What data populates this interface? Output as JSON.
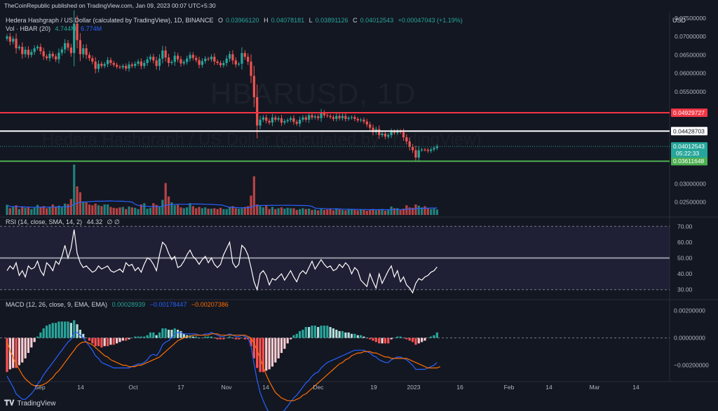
{
  "publisher_line": "TheCoinRepublic published on TradingView.com, Jan 09, 2023 00:07 UTC+5:30",
  "symbol_title": "Hedera Hashgraph / US Dollar (calculated by TradingView), 1D, BINANCE",
  "ohlc": {
    "o_label": "O",
    "o": "0.03966120",
    "h_label": "H",
    "h": "0.04078181",
    "l_label": "L",
    "l": "0.03891126",
    "c_label": "C",
    "c": "0.04012543",
    "change": "+0.00047043 (+1.19%)"
  },
  "volume_indicator": {
    "label": "Vol · HBAR (20)",
    "value1": "4.744M",
    "value2": "6.774M"
  },
  "rsi_indicator": {
    "label": "RSI (14, close, SMA, 14, 2)",
    "value": "44.32",
    "extra": "∅ ∅"
  },
  "macd_indicator": {
    "label": "MACD (12, 26, close, 9, EMA, EMA)",
    "hist": "0.00028939",
    "macd": "−0.00178447",
    "signal": "−0.00207386"
  },
  "currency": "USD",
  "watermark_symbol": "HBARUSD, 1D",
  "watermark_name": "Hedera Hashgraph / US Dollar (calculated by TradingView)",
  "brand": "TradingView",
  "colors": {
    "bg": "#131722",
    "up": "#26a69a",
    "down": "#ef5350",
    "red_line": "#f23645",
    "white_line": "#ffffff",
    "green_line": "#4caf50",
    "macd": "#2962ff",
    "signal": "#ff6d00",
    "rsi": "#ffffff"
  },
  "chart_data": {
    "type": "candlestick",
    "x_tick_labels": [
      "Sep",
      "14",
      "Oct",
      "17",
      "Nov",
      "14",
      "Dec",
      "19",
      "2023",
      "16",
      "Feb",
      "14",
      "Mar",
      "14"
    ],
    "price_axis_labels": [
      "0.07500000",
      "0.07000000",
      "0.06500000",
      "0.06000000",
      "0.05500000",
      "0.03000000",
      "0.02500000"
    ],
    "ylim": [
      0.0215,
      0.0765
    ],
    "levels": [
      {
        "name": "resistance",
        "value": 0.04929727,
        "label": "0.04929727",
        "color": "#f23645"
      },
      {
        "name": "resistance-2",
        "value": 0.04428703,
        "label": "0.04428703",
        "color": "#ffffff"
      },
      {
        "name": "support",
        "value": 0.03611648,
        "label": "0.03611648",
        "color": "#4caf50"
      }
    ],
    "last_price": {
      "value": 0.04012543,
      "label": "0.04012543",
      "countdown": "05:22:33"
    },
    "close": [
      0.07,
      0.0686,
      0.0694,
      0.0668,
      0.0672,
      0.0652,
      0.0664,
      0.065,
      0.0658,
      0.0668,
      0.0672,
      0.066,
      0.0646,
      0.0641,
      0.0653,
      0.0646,
      0.0638,
      0.0656,
      0.0665,
      0.0682,
      0.067,
      0.0655,
      0.0735,
      0.069,
      0.0652,
      0.0668,
      0.065,
      0.0641,
      0.0632,
      0.0612,
      0.0626,
      0.062,
      0.0625,
      0.0636,
      0.0628,
      0.0623,
      0.0618,
      0.0616,
      0.062,
      0.0613,
      0.0624,
      0.062,
      0.0626,
      0.0632,
      0.062,
      0.0628,
      0.0638,
      0.0645,
      0.0635,
      0.062,
      0.064,
      0.0662,
      0.0643,
      0.0628,
      0.0631,
      0.0648,
      0.0638,
      0.0627,
      0.0631,
      0.064,
      0.065,
      0.0642,
      0.0636,
      0.0623,
      0.0633,
      0.064,
      0.0638,
      0.0645,
      0.0632,
      0.0628,
      0.0622,
      0.0628,
      0.064,
      0.0652,
      0.0635,
      0.0624,
      0.0626,
      0.0655,
      0.0645,
      0.0632,
      0.0593,
      0.0535,
      0.0458,
      0.0474,
      0.048,
      0.0471,
      0.0466,
      0.048,
      0.0474,
      0.0478,
      0.0466,
      0.047,
      0.0473,
      0.0478,
      0.0468,
      0.0463,
      0.0474,
      0.048,
      0.0474,
      0.0486,
      0.048,
      0.0483,
      0.0478,
      0.0493,
      0.0486,
      0.0484,
      0.0481,
      0.0476,
      0.0484,
      0.0478,
      0.0484,
      0.0476,
      0.0479,
      0.0481,
      0.0476,
      0.0472,
      0.0474,
      0.0469,
      0.0461,
      0.0452,
      0.044,
      0.0448,
      0.0432,
      0.0436,
      0.0428,
      0.0432,
      0.0442,
      0.0438,
      0.0443,
      0.044,
      0.0426,
      0.0415,
      0.04,
      0.0391,
      0.0371,
      0.0391,
      0.0393,
      0.0392,
      0.0389,
      0.0393,
      0.0397,
      0.0401
    ],
    "volume": [
      2.4,
      1.6,
      1.9,
      2.3,
      1.4,
      2.0,
      1.7,
      1.8,
      1.4,
      1.7,
      2.4,
      1.9,
      2.1,
      1.6,
      1.9,
      2.5,
      1.9,
      2.2,
      1.8,
      2.7,
      2.6,
      3.8,
      12.0,
      6.8,
      5.4,
      3.2,
      3.0,
      2.5,
      2.3,
      2.7,
      2.3,
      2.1,
      2.5,
      2.5,
      1.9,
      1.7,
      1.6,
      1.8,
      1.9,
      1.4,
      2.0,
      1.8,
      1.7,
      1.4,
      2.5,
      2.8,
      1.5,
      1.7,
      2.8,
      2.4,
      1.9,
      3.6,
      7.6,
      4.4,
      3.0,
      2.3,
      2.4,
      1.8,
      1.6,
      1.8,
      2.8,
      2.1,
      1.6,
      1.9,
      1.6,
      1.8,
      1.5,
      1.5,
      1.6,
      1.4,
      1.7,
      1.4,
      1.4,
      1.9,
      2.1,
      1.6,
      1.5,
      1.6,
      1.9,
      2.1,
      4.6,
      9.2,
      2.5,
      2.1,
      1.8,
      2.2,
      1.4,
      1.9,
      1.4,
      1.6,
      1.8,
      1.5,
      1.7,
      1.6,
      1.6,
      1.2,
      1.4,
      1.6,
      1.4,
      1.5,
      1.2,
      1.3,
      1.1,
      1.4,
      1.2,
      1.3,
      1.5,
      1.1,
      1.6,
      1.3,
      1.2,
      1.1,
      1.4,
      1.3,
      1.2,
      1.1,
      1.3,
      1.2,
      1.0,
      1.3,
      1.4,
      1.1,
      1.3,
      1.4,
      1.0,
      1.3,
      2.0,
      1.6,
      1.6,
      1.2,
      1.5,
      2.3,
      1.8,
      1.7,
      2.5,
      2.2,
      1.8,
      2.1,
      1.7,
      1.4,
      1.5,
      1.3
    ],
    "rsi_axis_labels": [
      "70.00",
      "60.00",
      "50.00",
      "40.00",
      "30.00"
    ],
    "rsi_band": [
      30,
      70
    ],
    "rsi_midline": 50,
    "rsi": [
      42,
      45,
      43,
      47,
      39,
      42,
      38,
      45,
      43,
      44,
      48,
      42,
      39,
      47,
      45,
      42,
      48,
      46,
      51,
      58,
      50,
      56,
      68,
      53,
      47,
      44,
      45,
      43,
      41,
      42,
      45,
      43,
      44,
      45,
      42,
      41,
      42,
      43,
      41,
      47,
      45,
      46,
      42,
      44,
      41,
      46,
      50,
      49,
      46,
      42,
      52,
      60,
      58,
      53,
      49,
      51,
      44,
      45,
      48,
      52,
      55,
      51,
      49,
      46,
      49,
      51,
      47,
      50,
      46,
      44,
      46,
      52,
      56,
      60,
      47,
      44,
      46,
      58,
      56,
      52,
      44,
      35,
      30,
      40,
      42,
      39,
      33,
      37,
      36,
      38,
      40,
      36,
      39,
      42,
      38,
      35,
      40,
      42,
      40,
      44,
      48,
      43,
      46,
      49,
      46,
      44,
      45,
      42,
      43,
      46,
      44,
      47,
      45,
      40,
      44,
      42,
      36,
      34,
      32,
      40,
      35,
      31,
      40,
      34,
      38,
      42,
      45,
      38,
      42,
      35,
      38,
      33,
      31,
      28,
      34,
      37,
      36,
      38,
      39,
      41,
      42,
      44.32
    ],
    "macd_axis_labels": [
      "0.00200000",
      "0.00000000",
      "−0.00200000"
    ],
    "macd_ylim": [
      -0.0032,
      0.0027
    ],
    "macd_line": [
      -0.0028,
      -0.0032,
      -0.0036,
      -0.0041,
      -0.0043,
      -0.0045,
      -0.0045,
      -0.0043,
      -0.0041,
      -0.0038,
      -0.0034,
      -0.0031,
      -0.0027,
      -0.0024,
      -0.0021,
      -0.0018,
      -0.0015,
      -0.0012,
      -0.0009,
      -0.0006,
      -0.0003,
      -0.0001,
      0.0004,
      0.0004,
      0.0002,
      0.0,
      -0.0003,
      -0.0006,
      -0.0009,
      -0.0013,
      -0.0015,
      -0.0018,
      -0.0019,
      -0.002,
      -0.0021,
      -0.0022,
      -0.0022,
      -0.0022,
      -0.0022,
      -0.0022,
      -0.0022,
      -0.0021,
      -0.002,
      -0.0019,
      -0.0019,
      -0.0018,
      -0.0016,
      -0.0013,
      -0.0012,
      -0.0013,
      -0.001,
      -0.0005,
      -0.0003,
      -0.0002,
      0.0,
      0.0003,
      0.0004,
      0.0004,
      0.0003,
      0.0003,
      0.0003,
      0.0003,
      0.0003,
      0.0002,
      0.0002,
      0.0003,
      0.0003,
      0.0004,
      0.0003,
      0.0002,
      0.0001,
      0.0001,
      0.0002,
      0.0003,
      0.0002,
      0.0001,
      0.0001,
      0.0002,
      0.0001,
      0.0,
      -0.0006,
      -0.0019,
      -0.0031,
      -0.004,
      -0.0046,
      -0.0051,
      -0.0055,
      -0.0057,
      -0.0058,
      -0.0057,
      -0.0055,
      -0.0053,
      -0.005,
      -0.0047,
      -0.0044,
      -0.0042,
      -0.0039,
      -0.0036,
      -0.0033,
      -0.0031,
      -0.0028,
      -0.0026,
      -0.0025,
      -0.0022,
      -0.002,
      -0.0018,
      -0.0017,
      -0.0016,
      -0.0015,
      -0.0014,
      -0.0013,
      -0.0012,
      -0.0011,
      -0.001,
      -0.0009,
      -0.0009,
      -0.0009,
      -0.0009,
      -0.001,
      -0.0011,
      -0.0013,
      -0.0014,
      -0.0016,
      -0.0017,
      -0.0018,
      -0.0018,
      -0.0016,
      -0.0015,
      -0.0014,
      -0.0014,
      -0.0015,
      -0.0016,
      -0.0018,
      -0.002,
      -0.0023,
      -0.0023,
      -0.0023,
      -0.0023,
      -0.0022,
      -0.0021,
      -0.002,
      -0.0018
    ],
    "signal_line": [
      -0.0003,
      -0.0009,
      -0.0014,
      -0.0019,
      -0.0023,
      -0.0027,
      -0.003,
      -0.0032,
      -0.0034,
      -0.0035,
      -0.0035,
      -0.0035,
      -0.0034,
      -0.0033,
      -0.0031,
      -0.0029,
      -0.0026,
      -0.0024,
      -0.0021,
      -0.0018,
      -0.0015,
      -0.0012,
      -0.0009,
      -0.0006,
      -0.0004,
      -0.0003,
      -0.0003,
      -0.0004,
      -0.0005,
      -0.0007,
      -0.0009,
      -0.0011,
      -0.0013,
      -0.0014,
      -0.0016,
      -0.0017,
      -0.0018,
      -0.0019,
      -0.002,
      -0.002,
      -0.0021,
      -0.0021,
      -0.0021,
      -0.002,
      -0.002,
      -0.0019,
      -0.0018,
      -0.0017,
      -0.0016,
      -0.0015,
      -0.0014,
      -0.0012,
      -0.001,
      -0.0008,
      -0.0006,
      -0.0004,
      -0.0002,
      -0.0001,
      0.0,
      0.0001,
      0.0001,
      0.0002,
      0.0002,
      0.0002,
      0.0002,
      0.0002,
      0.0002,
      0.0003,
      0.0003,
      0.0003,
      0.0002,
      0.0002,
      0.0002,
      0.0002,
      0.0002,
      0.0002,
      0.0002,
      0.0002,
      0.0002,
      0.0001,
      0.0,
      -0.0004,
      -0.0009,
      -0.0015,
      -0.0021,
      -0.0027,
      -0.0032,
      -0.0036,
      -0.004,
      -0.0042,
      -0.0044,
      -0.0045,
      -0.0046,
      -0.0046,
      -0.0046,
      -0.0045,
      -0.0044,
      -0.0042,
      -0.0041,
      -0.0039,
      -0.0037,
      -0.0035,
      -0.0033,
      -0.0031,
      -0.0029,
      -0.0027,
      -0.0025,
      -0.0023,
      -0.0021,
      -0.0019,
      -0.0018,
      -0.0016,
      -0.0015,
      -0.0013,
      -0.0012,
      -0.0011,
      -0.0011,
      -0.001,
      -0.001,
      -0.001,
      -0.0011,
      -0.0011,
      -0.0012,
      -0.0013,
      -0.0014,
      -0.0014,
      -0.0015,
      -0.0015,
      -0.0015,
      -0.0015,
      -0.0015,
      -0.0015,
      -0.0016,
      -0.0017,
      -0.0018,
      -0.0019,
      -0.002,
      -0.0021,
      -0.0022,
      -0.0022,
      -0.0022,
      -0.0022,
      -0.0021
    ]
  }
}
